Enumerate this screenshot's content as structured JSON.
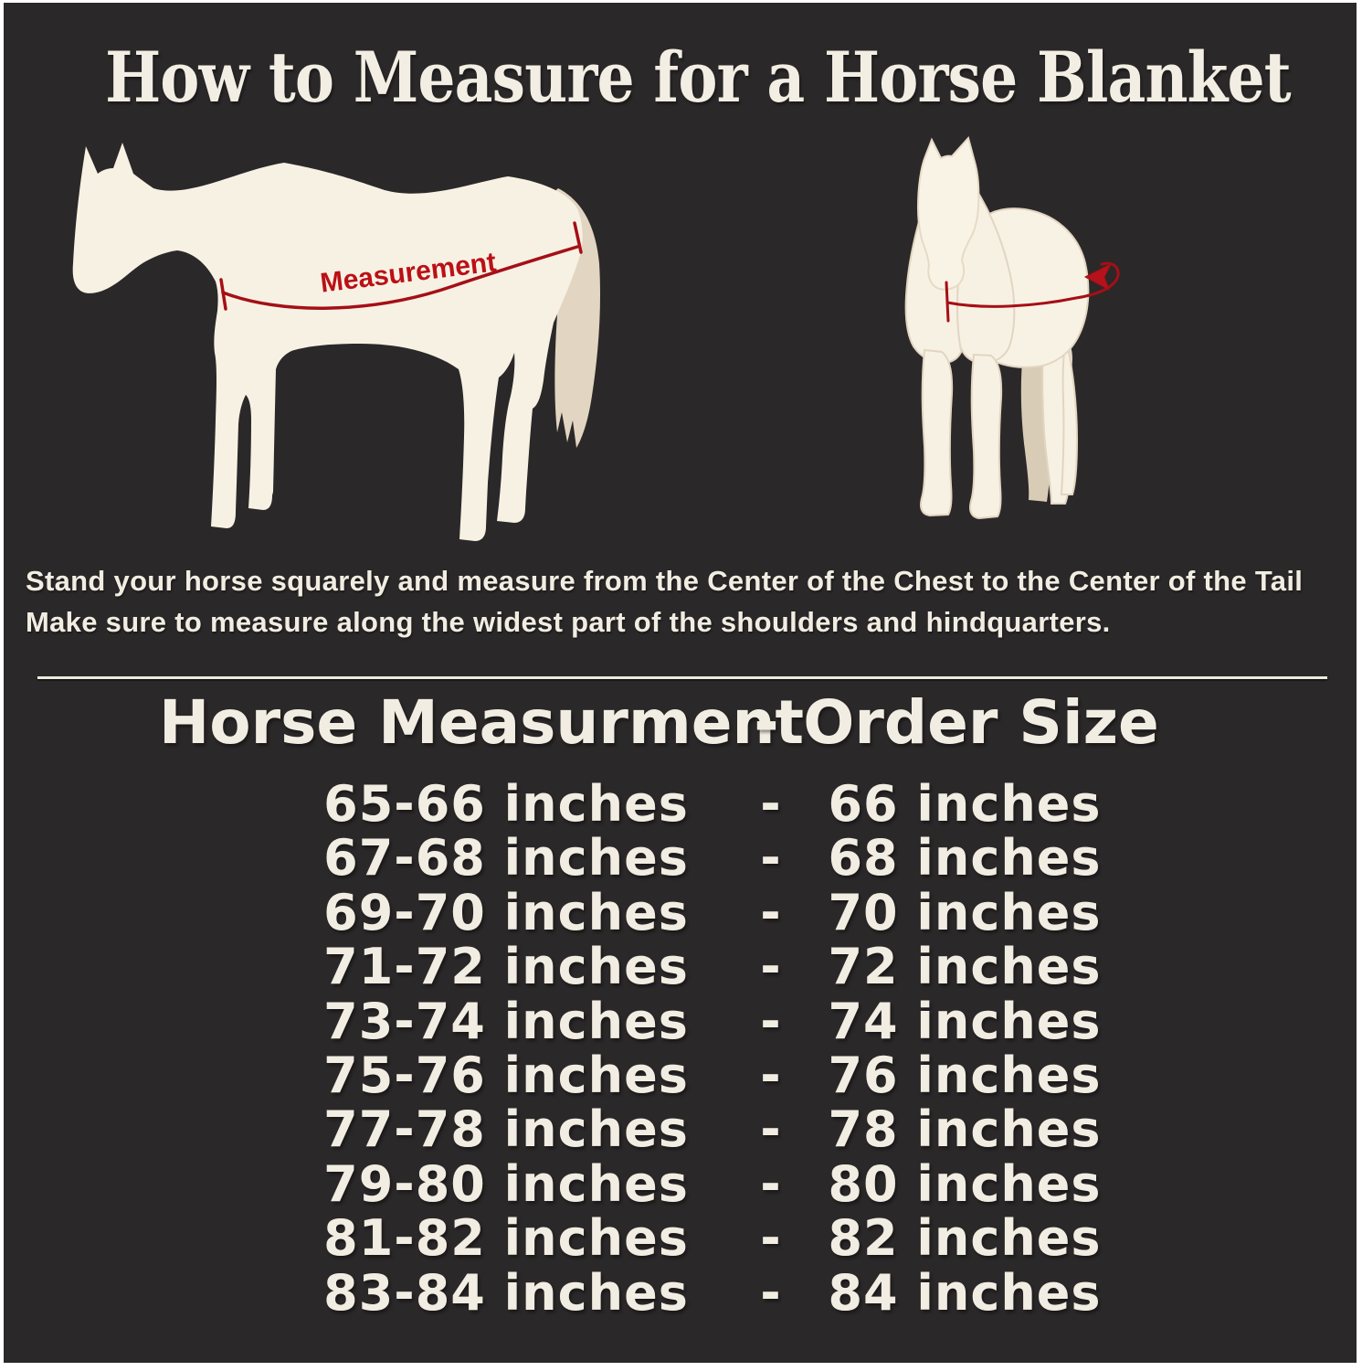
{
  "header": {
    "title": "How to Measure for a Horse Blanket"
  },
  "diagram": {
    "measurement_label": "Measurement",
    "side_horse": "horse side view with girth measurement line from chest to tail",
    "front_horse": "horse front view with measurement line wrapping around chest"
  },
  "instructions": {
    "line1": "Stand your horse squarely and measure from the Center of the Chest to the Center of the Tail",
    "line2": "Make sure to measure along the widest part of the shoulders and hindquarters."
  },
  "size_chart": {
    "columns": {
      "measurement": "Horse Measurment",
      "separator": "-",
      "order": "Order Size"
    },
    "rows": [
      {
        "measurement": "65-66 inches",
        "separator": "-",
        "order": "66 inches"
      },
      {
        "measurement": "67-68 inches",
        "separator": "-",
        "order": "68 inches"
      },
      {
        "measurement": "69-70 inches",
        "separator": "-",
        "order": "70 inches"
      },
      {
        "measurement": "71-72 inches",
        "separator": "-",
        "order": "72 inches"
      },
      {
        "measurement": "73-74 inches",
        "separator": "-",
        "order": "74 inches"
      },
      {
        "measurement": "75-76 inches",
        "separator": "-",
        "order": "76 inches"
      },
      {
        "measurement": "77-78 inches",
        "separator": "-",
        "order": "78 inches"
      },
      {
        "measurement": "79-80 inches",
        "separator": "-",
        "order": "80 inches"
      },
      {
        "measurement": "81-82 inches",
        "separator": "-",
        "order": "82 inches"
      },
      {
        "measurement": "83-84 inches",
        "separator": "-",
        "order": "84 inches"
      }
    ]
  },
  "colors": {
    "background": "#2b2829",
    "frame_border": "#ffffff",
    "text_cream": "#f2ede2",
    "horse_body": "#f7f1e4",
    "horse_shade_tan": "#e2d5c1",
    "hind_leg_shadow": "#d9ccb6",
    "accent_red": "#bb1016",
    "line_red": "#a50f16"
  }
}
